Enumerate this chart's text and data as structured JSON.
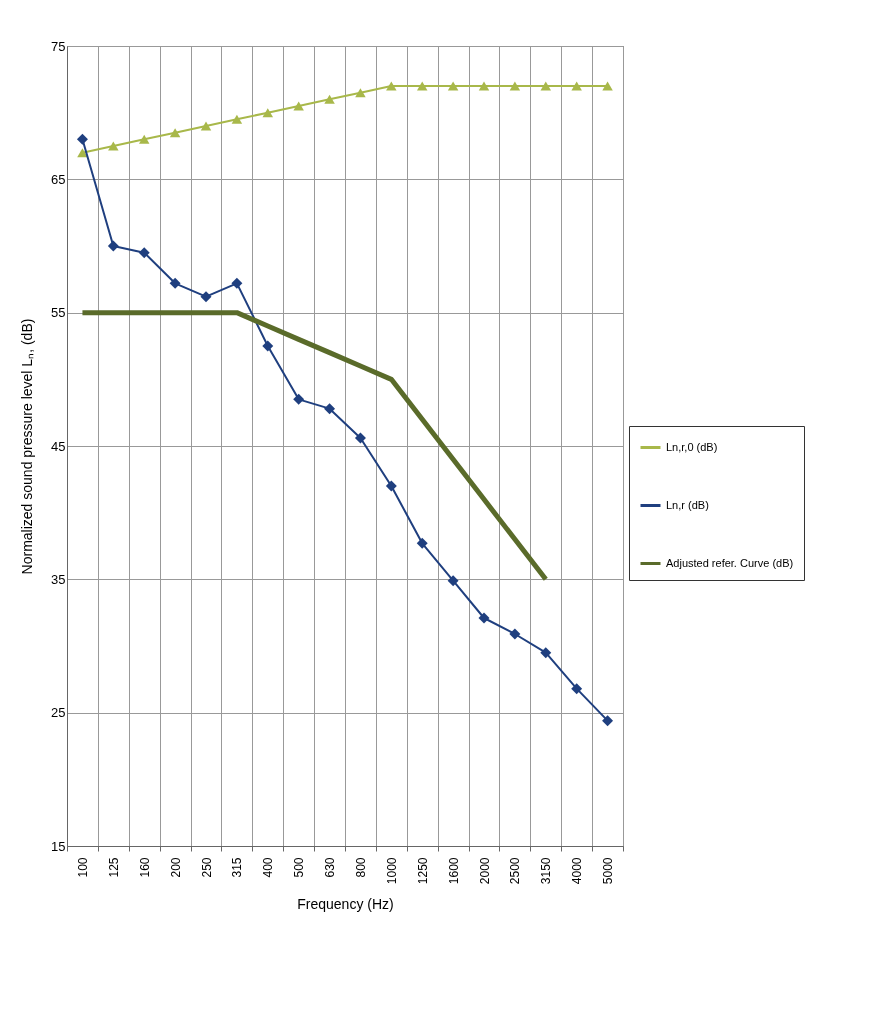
{
  "chart_data": {
    "type": "line",
    "xlabel": "Frequency (Hz)",
    "ylabel": "Normalized sound pressure level Lₙ, (dB)",
    "categories": [
      "100",
      "125",
      "160",
      "200",
      "250",
      "315",
      "400",
      "500",
      "630",
      "800",
      "1000",
      "1250",
      "1600",
      "2000",
      "2500",
      "3150",
      "4000",
      "5000"
    ],
    "series": [
      {
        "name": "Ln,r,0 (dB)",
        "color": "#a8b84a",
        "marker": "triangle",
        "values": [
          67,
          67.5,
          68,
          68.5,
          69,
          69.5,
          70,
          70.5,
          71,
          71.5,
          72,
          72,
          72,
          72,
          72,
          72,
          72,
          72
        ]
      },
      {
        "name": "Ln,r (dB)",
        "color": "#1f3f7f",
        "marker": "diamond",
        "values": [
          68,
          60,
          59.5,
          57.2,
          56.2,
          57.2,
          52.5,
          48.5,
          47.8,
          45.6,
          42,
          37.7,
          34.9,
          32.1,
          30.9,
          29.5,
          26.8,
          24.4
        ]
      },
      {
        "name": "Adjusted refer. Curve (dB)",
        "color": "#5a6b2a",
        "marker": "none",
        "values": [
          55,
          55,
          55,
          55,
          55,
          55,
          54,
          53,
          52,
          51,
          50,
          47,
          44,
          41,
          38,
          35,
          null,
          null
        ]
      }
    ],
    "ylim": [
      15,
      75
    ],
    "yticks": [
      15,
      25,
      35,
      45,
      55,
      65,
      75
    ],
    "grid": true,
    "legend": "right"
  }
}
